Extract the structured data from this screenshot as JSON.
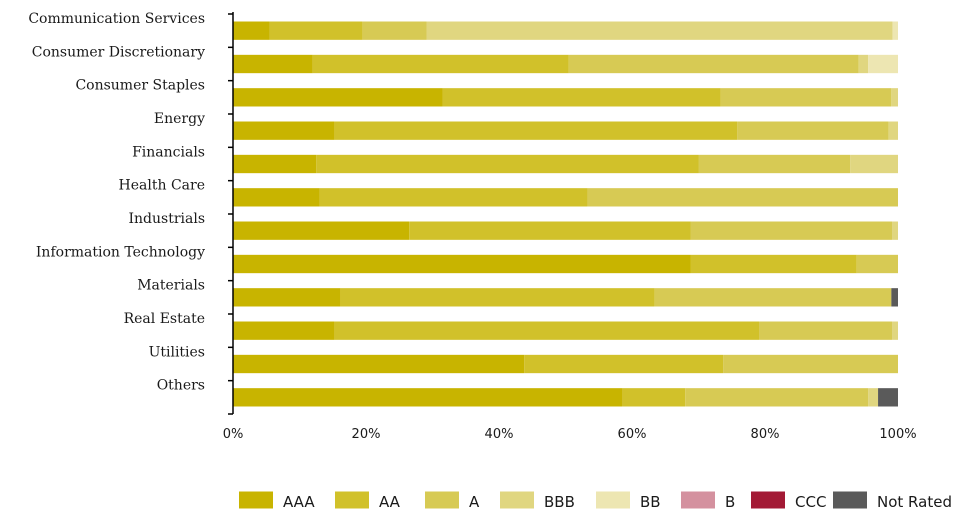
{
  "chart_data": {
    "type": "bar",
    "orientation": "horizontal",
    "stacked": true,
    "title": "",
    "xlabel": "",
    "ylabel": "",
    "xlim": [
      0,
      100
    ],
    "x_ticks": [
      "0%",
      "20%",
      "40%",
      "60%",
      "80%",
      "100%"
    ],
    "grid": false,
    "legend_position": "bottom-right",
    "categories": [
      "Communication Services",
      "Consumer Discretionary",
      "Consumer Staples",
      "Energy",
      "Financials",
      "Health Care",
      "Industrials",
      "Information Technology",
      "Materials",
      "Real Estate",
      "Utilities",
      "Others"
    ],
    "series": [
      {
        "name": "AAA",
        "color": "#c8b400",
        "values": [
          5.5,
          12,
          31.5,
          15.3,
          12.5,
          13,
          26.5,
          68.8,
          16.2,
          15.3,
          43.8,
          58.6
        ]
      },
      {
        "name": "AA",
        "color": "#d1c12a",
        "values": [
          14,
          38.5,
          41.8,
          60.5,
          57.5,
          40.3,
          42.3,
          25,
          47.2,
          63.8,
          29.9,
          9.4
        ]
      },
      {
        "name": "A",
        "color": "#d7ca54",
        "values": [
          9.6,
          43.6,
          25.7,
          22.8,
          22.8,
          46.7,
          30.3,
          6.2,
          35.6,
          20,
          26.3,
          27.5
        ]
      },
      {
        "name": "BBB",
        "color": "#e0d680",
        "values": [
          70.1,
          1.4,
          1,
          1.4,
          7.2,
          0,
          0.9,
          0,
          0,
          0.9,
          0,
          1.5
        ]
      },
      {
        "name": "BB",
        "color": "#ede6b2",
        "values": [
          0.8,
          4.5,
          0,
          0,
          0,
          0,
          0,
          0,
          0,
          0,
          0,
          0
        ]
      },
      {
        "name": "B",
        "color": "#d4919f",
        "values": [
          0,
          0,
          0,
          0,
          0,
          0,
          0,
          0,
          0,
          0,
          0,
          0
        ]
      },
      {
        "name": "CCC",
        "color": "#a31a35",
        "values": [
          0,
          0,
          0,
          0,
          0,
          0,
          0,
          0,
          0,
          0,
          0,
          0
        ]
      },
      {
        "name": "Not Rated",
        "color": "#5a5a5a",
        "values": [
          0,
          0,
          0,
          0,
          0,
          0,
          0,
          0,
          1,
          0,
          0,
          3
        ]
      }
    ]
  }
}
